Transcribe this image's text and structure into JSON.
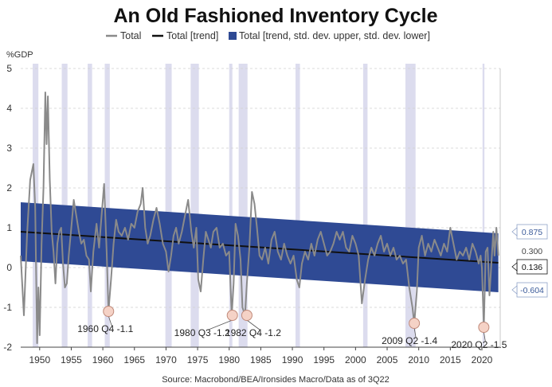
{
  "chart_data": {
    "type": "line",
    "title": "An Old Fashioned Inventory Cycle",
    "source": "Source: Macrobond/BEA/Ironsides Macro/Data as of 3Q22",
    "ylabel": "%GDP",
    "xlabel": "",
    "xlim": [
      1947.0,
      2022.9
    ],
    "ylim": [
      -2,
      5
    ],
    "x_ticks": [
      1950,
      1955,
      1960,
      1965,
      1970,
      1975,
      1980,
      1985,
      1990,
      1995,
      2000,
      2005,
      2010,
      2015,
      2020
    ],
    "y_ticks": [
      -2,
      -1,
      0,
      1,
      2,
      3,
      4,
      5
    ],
    "grid": "horizontal dashed",
    "legend_position": "top",
    "legend": [
      "Total",
      "Total [trend]",
      "Total [trend, std. dev. upper, std. dev. lower]"
    ],
    "colors": {
      "total": "#8a8a8a",
      "trend": "#111111",
      "band": "#2f4a94",
      "recession": "#dcdcee",
      "marker_fill": "#f5d2c6",
      "marker_stroke": "#c08a7a",
      "tag_blue": "#3b5b9a"
    },
    "recessions": [
      [
        1948.9,
        1949.8
      ],
      [
        1953.5,
        1954.4
      ],
      [
        1957.6,
        1958.3
      ],
      [
        1960.3,
        1961.1
      ],
      [
        1969.9,
        1970.9
      ],
      [
        1973.9,
        1975.2
      ],
      [
        1980.0,
        1980.5
      ],
      [
        1981.5,
        1982.9
      ],
      [
        1990.5,
        1991.2
      ],
      [
        2001.2,
        2001.9
      ],
      [
        2007.9,
        2009.5
      ],
      [
        2020.1,
        2020.4
      ]
    ],
    "trend": {
      "x": [
        1947.0,
        2022.6
      ],
      "y": [
        0.9,
        0.12
      ]
    },
    "band": {
      "upper": [
        1.64,
        0.86
      ],
      "lower": [
        0.16,
        -0.62
      ]
    },
    "series": [
      {
        "name": "Total",
        "x": [
          1947.0,
          1947.5,
          1948.0,
          1948.5,
          1949.0,
          1949.3,
          1949.6,
          1949.8,
          1950.0,
          1950.3,
          1950.6,
          1950.9,
          1951.1,
          1951.3,
          1951.6,
          1951.9,
          1952.2,
          1952.5,
          1952.8,
          1953.1,
          1953.4,
          1953.7,
          1954.0,
          1954.3,
          1954.6,
          1955.0,
          1955.4,
          1955.8,
          1956.2,
          1956.6,
          1957.0,
          1957.4,
          1957.8,
          1958.1,
          1958.5,
          1959.0,
          1959.4,
          1959.8,
          1960.2,
          1960.6,
          1960.9,
          1961.3,
          1961.7,
          1962.1,
          1962.5,
          1963.0,
          1963.5,
          1964.0,
          1964.5,
          1965.0,
          1965.5,
          1966.0,
          1966.3,
          1966.7,
          1967.1,
          1967.5,
          1968.0,
          1968.5,
          1969.0,
          1969.5,
          1970.0,
          1970.4,
          1970.8,
          1971.2,
          1971.6,
          1972.0,
          1972.5,
          1973.0,
          1973.5,
          1974.0,
          1974.4,
          1974.8,
          1975.1,
          1975.5,
          1975.9,
          1976.3,
          1976.7,
          1977.1,
          1977.5,
          1978.0,
          1978.5,
          1979.0,
          1979.5,
          1980.0,
          1980.4,
          1980.7,
          1981.0,
          1981.4,
          1981.8,
          1982.1,
          1982.5,
          1982.8,
          1983.2,
          1983.6,
          1984.0,
          1984.4,
          1984.8,
          1985.2,
          1985.7,
          1986.2,
          1986.7,
          1987.2,
          1987.7,
          1988.2,
          1988.7,
          1989.2,
          1989.7,
          1990.2,
          1990.7,
          1991.1,
          1991.5,
          1992.0,
          1992.5,
          1993.0,
          1993.5,
          1994.0,
          1994.5,
          1995.0,
          1995.5,
          1996.0,
          1996.5,
          1997.0,
          1997.5,
          1998.0,
          1998.5,
          1999.0,
          1999.5,
          2000.0,
          2000.5,
          2001.0,
          2001.5,
          2002.0,
          2002.5,
          2003.0,
          2003.5,
          2004.0,
          2004.5,
          2005.0,
          2005.5,
          2006.0,
          2006.5,
          2007.0,
          2007.5,
          2008.0,
          2008.5,
          2009.0,
          2009.3,
          2009.7,
          2010.0,
          2010.5,
          2011.0,
          2011.5,
          2012.0,
          2012.5,
          2013.0,
          2013.5,
          2014.0,
          2014.5,
          2015.0,
          2015.5,
          2016.0,
          2016.5,
          2017.0,
          2017.5,
          2018.0,
          2018.5,
          2019.0,
          2019.5,
          2019.8,
          2020.0,
          2020.3,
          2020.6,
          2020.9,
          2021.2,
          2021.5,
          2021.8,
          2022.0,
          2022.3,
          2022.6
        ],
        "y": [
          0.3,
          -1.2,
          0.8,
          2.2,
          2.6,
          1.5,
          -1.9,
          -0.5,
          -1.7,
          0.6,
          2.0,
          4.4,
          3.1,
          4.3,
          2.2,
          0.9,
          0.4,
          -0.4,
          0.6,
          0.9,
          1.0,
          0.1,
          -0.5,
          -0.4,
          0.3,
          1.0,
          1.7,
          1.3,
          0.9,
          0.6,
          0.7,
          0.3,
          0.2,
          -0.6,
          0.4,
          1.1,
          0.5,
          1.3,
          2.1,
          0.4,
          -1.1,
          -0.3,
          0.6,
          1.2,
          0.9,
          0.8,
          1.0,
          0.7,
          1.1,
          1.0,
          1.4,
          1.6,
          2.0,
          1.0,
          0.6,
          0.8,
          1.2,
          1.5,
          1.1,
          0.6,
          0.4,
          -0.1,
          0.3,
          0.8,
          1.0,
          0.6,
          0.9,
          1.3,
          1.7,
          0.9,
          0.5,
          1.0,
          -0.3,
          -0.6,
          0.2,
          0.9,
          0.7,
          0.5,
          0.9,
          1.0,
          0.5,
          0.6,
          0.3,
          0.4,
          -1.2,
          -0.4,
          1.1,
          0.8,
          0.2,
          -1.0,
          -1.2,
          -0.4,
          0.5,
          1.9,
          1.6,
          1.0,
          0.3,
          0.2,
          0.5,
          0.1,
          0.7,
          0.9,
          0.4,
          0.2,
          0.6,
          0.3,
          0.1,
          0.3,
          -0.3,
          -0.5,
          0.1,
          0.4,
          0.2,
          0.6,
          0.3,
          0.7,
          0.9,
          0.6,
          0.3,
          0.4,
          0.6,
          0.9,
          0.7,
          0.9,
          0.5,
          0.4,
          0.8,
          0.6,
          0.3,
          -0.9,
          -0.3,
          0.2,
          0.5,
          0.3,
          0.6,
          0.8,
          0.4,
          0.6,
          0.3,
          0.5,
          0.2,
          0.3,
          0.1,
          0.2,
          -0.5,
          -1.0,
          -1.4,
          -0.6,
          0.5,
          0.8,
          0.3,
          0.6,
          0.4,
          0.7,
          0.5,
          0.3,
          0.6,
          0.4,
          1.0,
          0.6,
          0.2,
          0.4,
          0.3,
          0.5,
          0.2,
          0.6,
          0.4,
          0.1,
          0.3,
          0.0,
          -1.5,
          0.4,
          0.5,
          -0.7,
          0.1,
          0.9,
          0.3,
          1.0,
          0.3
        ]
      }
    ],
    "annotations": [
      {
        "x": 1960.9,
        "y": -1.1,
        "text": "1960 Q4 -1.1"
      },
      {
        "x": 1980.5,
        "y": -1.2,
        "text": "1980 Q3 -1.2"
      },
      {
        "x": 1982.8,
        "y": -1.2,
        "text": "1982 Q4 -1.2"
      },
      {
        "x": 2009.3,
        "y": -1.4,
        "text": "2009 Q2 -1.4"
      },
      {
        "x": 2020.3,
        "y": -1.5,
        "text": "2020 Q2 -1.5"
      }
    ],
    "end_tags": [
      {
        "y": 0.875,
        "text": "0.875",
        "style": "band"
      },
      {
        "y": 0.3,
        "text": "0.300",
        "style": "plain"
      },
      {
        "y": 0.136,
        "text": "0.136",
        "style": "trend"
      },
      {
        "y": -0.604,
        "text": "-0.604",
        "style": "band"
      }
    ]
  }
}
